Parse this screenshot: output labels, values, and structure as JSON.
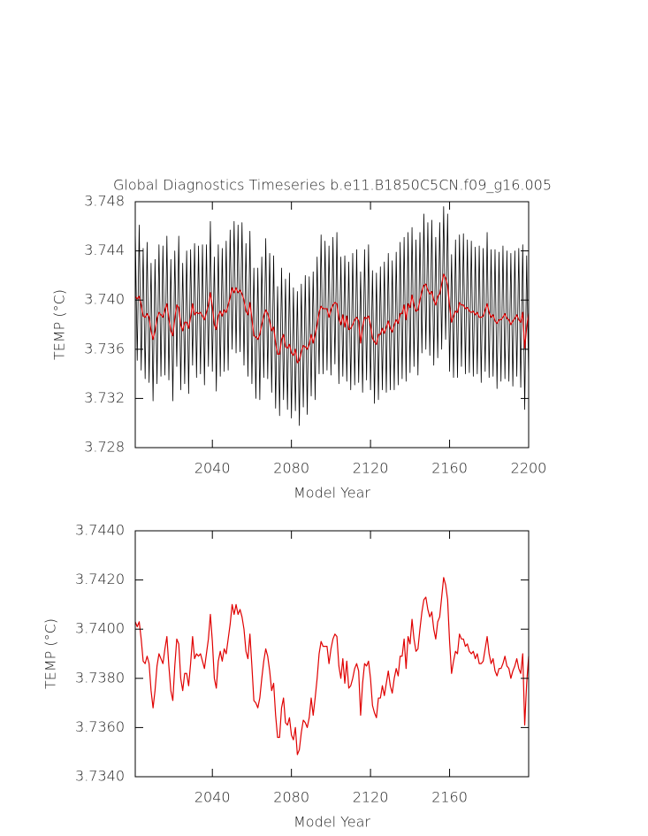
{
  "chart_data": [
    {
      "type": "line",
      "title": "Global Diagnostics Timeseries b.e11.B1850C5CN.f09_g16.005",
      "x_label": "Model Year",
      "y_label": "TEMP (°C)",
      "xlim": [
        2001,
        2200
      ],
      "xticks": [
        2040,
        2080,
        2120,
        2160,
        2200
      ],
      "ylim": [
        3.728,
        3.748
      ],
      "yticks": [
        3.728,
        3.732,
        3.736,
        {
          "value": 3.74,
          "label": "3.740"
        },
        3.744,
        3.748
      ],
      "x": [
        2001,
        2002,
        2003,
        2004,
        2005,
        2006,
        2007,
        2008,
        2009,
        2010,
        2011,
        2012,
        2013,
        2014,
        2015,
        2016,
        2017,
        2018,
        2019,
        2020,
        2021,
        2022,
        2023,
        2024,
        2025,
        2026,
        2027,
        2028,
        2029,
        2030,
        2031,
        2032,
        2033,
        2034,
        2035,
        2036,
        2037,
        2038,
        2039,
        2040,
        2041,
        2042,
        2043,
        2044,
        2045,
        2046,
        2047,
        2048,
        2049,
        2050,
        2051,
        2052,
        2053,
        2054,
        2055,
        2056,
        2057,
        2058,
        2059,
        2060,
        2061,
        2062,
        2063,
        2064,
        2065,
        2066,
        2067,
        2068,
        2069,
        2070,
        2071,
        2072,
        2073,
        2074,
        2075,
        2076,
        2077,
        2078,
        2079,
        2080,
        2081,
        2082,
        2083,
        2084,
        2085,
        2086,
        2087,
        2088,
        2089,
        2090,
        2091,
        2092,
        2093,
        2094,
        2095,
        2096,
        2097,
        2098,
        2099,
        2100,
        2101,
        2102,
        2103,
        2104,
        2105,
        2106,
        2107,
        2108,
        2109,
        2110,
        2111,
        2112,
        2113,
        2114,
        2115,
        2116,
        2117,
        2118,
        2119,
        2120,
        2121,
        2122,
        2123,
        2124,
        2125,
        2126,
        2127,
        2128,
        2129,
        2130,
        2131,
        2132,
        2133,
        2134,
        2135,
        2136,
        2137,
        2138,
        2139,
        2140,
        2141,
        2142,
        2143,
        2144,
        2145,
        2146,
        2147,
        2148,
        2149,
        2150,
        2151,
        2152,
        2153,
        2154,
        2155,
        2156,
        2157,
        2158,
        2159,
        2160,
        2161,
        2162,
        2163,
        2164,
        2165,
        2166,
        2167,
        2168,
        2169,
        2170,
        2171,
        2172,
        2173,
        2174,
        2175,
        2176,
        2177,
        2178,
        2179,
        2180,
        2181,
        2182,
        2183,
        2184,
        2185,
        2186,
        2187,
        2188,
        2189,
        2190,
        2191,
        2192,
        2193,
        2194,
        2195,
        2196,
        2197,
        2198,
        2199,
        2200
      ],
      "series": [
        {
          "color": "#000000",
          "values": [
            3.7458,
            3.7351,
            3.7461,
            3.7343,
            3.7442,
            3.7336,
            3.7447,
            3.7333,
            3.743,
            3.7318,
            3.7433,
            3.7332,
            3.7445,
            3.7338,
            3.7444,
            3.7339,
            3.7452,
            3.7335,
            3.7433,
            3.7318,
            3.744,
            3.7346,
            3.7452,
            3.7327,
            3.743,
            3.7332,
            3.744,
            3.7324,
            3.7441,
            3.7347,
            3.7446,
            3.7337,
            3.7444,
            3.734,
            3.7445,
            3.7331,
            3.7445,
            3.7346,
            3.7464,
            3.7342,
            3.7435,
            3.7326,
            3.7445,
            3.7338,
            3.7442,
            3.7342,
            3.7448,
            3.7343,
            3.7457,
            3.736,
            3.7464,
            3.7357,
            3.7461,
            3.7358,
            3.7463,
            3.7347,
            3.7446,
            3.7338,
            3.7456,
            3.7332,
            3.7426,
            3.732,
            3.7426,
            3.7319,
            3.7435,
            3.7337,
            3.745,
            3.7336,
            3.7438,
            3.7325,
            3.7436,
            3.7312,
            3.7411,
            3.7306,
            3.7426,
            3.7319,
            3.7417,
            3.7311,
            3.7422,
            3.7304,
            3.741,
            3.731,
            3.7407,
            3.7298,
            3.7413,
            3.7313,
            3.742,
            3.7307,
            3.7419,
            3.7322,
            3.7423,
            3.7319,
            3.7435,
            3.734,
            3.7453,
            3.734,
            3.7448,
            3.7343,
            3.7444,
            3.7339,
            3.7451,
            3.7348,
            3.7455,
            3.7332,
            3.7435,
            3.7338,
            3.7436,
            3.7334,
            3.7431,
            3.7327,
            3.7438,
            3.7331,
            3.7441,
            3.7333,
            3.7423,
            3.7325,
            3.7441,
            3.7335,
            3.7445,
            3.7327,
            3.7424,
            3.7316,
            3.7422,
            3.7319,
            3.7427,
            3.7327,
            3.7431,
            3.7325,
            3.7438,
            3.7327,
            3.7432,
            3.7327,
            3.7439,
            3.7331,
            3.7447,
            3.7336,
            3.7451,
            3.7334,
            3.7455,
            3.7341,
            3.7459,
            3.7346,
            3.7449,
            3.7339,
            3.7455,
            3.7357,
            3.747,
            3.736,
            3.7463,
            3.7355,
            3.7465,
            3.7347,
            3.7451,
            3.7353,
            3.7463,
            3.736,
            3.7476,
            3.7368,
            3.747,
            3.7342,
            3.7437,
            3.7337,
            3.7449,
            3.7337,
            3.7453,
            3.7346,
            3.7454,
            3.734,
            3.7449,
            3.7341,
            3.7448,
            3.7338,
            3.7443,
            3.734,
            3.7444,
            3.7333,
            3.7442,
            3.7342,
            3.7455,
            3.7337,
            3.7441,
            3.7338,
            3.7441,
            3.7328,
            3.7439,
            3.7334,
            3.7444,
            3.7336,
            3.744,
            3.7334,
            3.7438,
            3.733,
            3.744,
            3.7338,
            3.7442,
            3.7329,
            3.7445,
            3.7311,
            3.7436,
            3.7336
          ]
        },
        {
          "color": "#e00000",
          "values": [
            3.7403,
            3.7401,
            3.7403,
            3.7396,
            3.7387,
            3.7386,
            3.7389,
            3.7386,
            3.7375,
            3.7368,
            3.7375,
            3.7385,
            3.739,
            3.7388,
            3.7386,
            3.7392,
            3.7397,
            3.7385,
            3.7375,
            3.7371,
            3.7385,
            3.7396,
            3.7394,
            3.738,
            3.7375,
            3.7382,
            3.7382,
            3.7377,
            3.7386,
            3.7397,
            3.7388,
            3.739,
            3.7389,
            3.739,
            3.7387,
            3.7384,
            3.739,
            3.7396,
            3.7406,
            3.7395,
            3.738,
            3.7376,
            3.7387,
            3.7391,
            3.7387,
            3.7392,
            3.739,
            3.7396,
            3.7402,
            3.741,
            3.7406,
            3.741,
            3.7406,
            3.7408,
            3.7405,
            3.74,
            3.7391,
            3.7388,
            3.7398,
            3.7385,
            3.7371,
            3.737,
            3.7368,
            3.7372,
            3.738,
            3.7387,
            3.7392,
            3.7389,
            3.7383,
            3.7375,
            3.7378,
            3.7365,
            3.7356,
            3.7356,
            3.7368,
            3.7372,
            3.7362,
            3.7361,
            3.7364,
            3.7357,
            3.7355,
            3.736,
            3.7349,
            3.7351,
            3.7358,
            3.7363,
            3.7362,
            3.736,
            3.7364,
            3.7372,
            3.7365,
            3.7372,
            3.738,
            3.739,
            3.7395,
            3.7393,
            3.7393,
            3.7393,
            3.7386,
            3.7392,
            3.7396,
            3.7398,
            3.7397,
            3.7385,
            3.738,
            3.7388,
            3.7378,
            3.7387,
            3.7376,
            3.7377,
            3.738,
            3.7384,
            3.7386,
            3.7383,
            3.7365,
            3.7378,
            3.7386,
            3.7385,
            3.7387,
            3.738,
            3.7369,
            3.7366,
            3.7364,
            3.7372,
            3.7372,
            3.7377,
            3.7373,
            3.7378,
            3.7383,
            3.7377,
            3.7374,
            3.738,
            3.7384,
            3.7381,
            3.7389,
            3.7389,
            3.7396,
            3.7384,
            3.7397,
            3.7394,
            3.7404,
            3.7396,
            3.7391,
            3.7392,
            3.74,
            3.7407,
            3.7412,
            3.7413,
            3.7408,
            3.7405,
            3.7407,
            3.74,
            3.7396,
            3.7403,
            3.7405,
            3.7413,
            3.7421,
            3.7418,
            3.7412,
            3.7395,
            3.7382,
            3.7387,
            3.7391,
            3.739,
            3.7398,
            3.7396,
            3.7396,
            3.7393,
            3.7394,
            3.7391,
            3.739,
            3.7391,
            3.7388,
            3.739,
            3.7386,
            3.7386,
            3.7387,
            3.7392,
            3.7397,
            3.739,
            3.7386,
            3.7388,
            3.7383,
            3.7381,
            3.7384,
            3.7384,
            3.7386,
            3.7389,
            3.7385,
            3.7384,
            3.738,
            3.7383,
            3.7385,
            3.7388,
            3.7384,
            3.7382,
            3.739,
            3.7361,
            3.7378,
            3.7389
          ]
        }
      ]
    },
    {
      "type": "line",
      "x_label": "Model Year",
      "y_label": "TEMP (°C)",
      "xlim": [
        2001,
        2200
      ],
      "xticks": [
        2040,
        2080,
        2120,
        2160
      ],
      "ylim": [
        3.734,
        3.744
      ],
      "yticks": [
        {
          "value": 3.734,
          "label": "3.7340"
        },
        {
          "value": 3.736,
          "label": "3.7360"
        },
        {
          "value": 3.738,
          "label": "3.7380"
        },
        {
          "value": 3.74,
          "label": "3.7400"
        },
        {
          "value": 3.742,
          "label": "3.7420"
        },
        {
          "value": 3.744,
          "label": "3.7440"
        }
      ],
      "x": [
        2001,
        2002,
        2003,
        2004,
        2005,
        2006,
        2007,
        2008,
        2009,
        2010,
        2011,
        2012,
        2013,
        2014,
        2015,
        2016,
        2017,
        2018,
        2019,
        2020,
        2021,
        2022,
        2023,
        2024,
        2025,
        2026,
        2027,
        2028,
        2029,
        2030,
        2031,
        2032,
        2033,
        2034,
        2035,
        2036,
        2037,
        2038,
        2039,
        2040,
        2041,
        2042,
        2043,
        2044,
        2045,
        2046,
        2047,
        2048,
        2049,
        2050,
        2051,
        2052,
        2053,
        2054,
        2055,
        2056,
        2057,
        2058,
        2059,
        2060,
        2061,
        2062,
        2063,
        2064,
        2065,
        2066,
        2067,
        2068,
        2069,
        2070,
        2071,
        2072,
        2073,
        2074,
        2075,
        2076,
        2077,
        2078,
        2079,
        2080,
        2081,
        2082,
        2083,
        2084,
        2085,
        2086,
        2087,
        2088,
        2089,
        2090,
        2091,
        2092,
        2093,
        2094,
        2095,
        2096,
        2097,
        2098,
        2099,
        2100,
        2101,
        2102,
        2103,
        2104,
        2105,
        2106,
        2107,
        2108,
        2109,
        2110,
        2111,
        2112,
        2113,
        2114,
        2115,
        2116,
        2117,
        2118,
        2119,
        2120,
        2121,
        2122,
        2123,
        2124,
        2125,
        2126,
        2127,
        2128,
        2129,
        2130,
        2131,
        2132,
        2133,
        2134,
        2135,
        2136,
        2137,
        2138,
        2139,
        2140,
        2141,
        2142,
        2143,
        2144,
        2145,
        2146,
        2147,
        2148,
        2149,
        2150,
        2151,
        2152,
        2153,
        2154,
        2155,
        2156,
        2157,
        2158,
        2159,
        2160,
        2161,
        2162,
        2163,
        2164,
        2165,
        2166,
        2167,
        2168,
        2169,
        2170,
        2171,
        2172,
        2173,
        2174,
        2175,
        2176,
        2177,
        2178,
        2179,
        2180,
        2181,
        2182,
        2183,
        2184,
        2185,
        2186,
        2187,
        2188,
        2189,
        2190,
        2191,
        2192,
        2193,
        2194,
        2195,
        2196,
        2197,
        2198,
        2199,
        2200
      ],
      "series": [
        {
          "color": "#e00000",
          "values": [
            3.7403,
            3.7401,
            3.7403,
            3.7396,
            3.7387,
            3.7386,
            3.7389,
            3.7386,
            3.7375,
            3.7368,
            3.7375,
            3.7385,
            3.739,
            3.7388,
            3.7386,
            3.7392,
            3.7397,
            3.7385,
            3.7375,
            3.7371,
            3.7385,
            3.7396,
            3.7394,
            3.738,
            3.7375,
            3.7382,
            3.7382,
            3.7377,
            3.7386,
            3.7397,
            3.7388,
            3.739,
            3.7389,
            3.739,
            3.7387,
            3.7384,
            3.739,
            3.7396,
            3.7406,
            3.7395,
            3.738,
            3.7376,
            3.7387,
            3.7391,
            3.7387,
            3.7392,
            3.739,
            3.7396,
            3.7402,
            3.741,
            3.7406,
            3.741,
            3.7406,
            3.7408,
            3.7405,
            3.74,
            3.7391,
            3.7388,
            3.7398,
            3.7385,
            3.7371,
            3.737,
            3.7368,
            3.7372,
            3.738,
            3.7387,
            3.7392,
            3.7389,
            3.7383,
            3.7375,
            3.7378,
            3.7365,
            3.7356,
            3.7356,
            3.7368,
            3.7372,
            3.7362,
            3.7361,
            3.7364,
            3.7357,
            3.7355,
            3.736,
            3.7349,
            3.7351,
            3.7358,
            3.7363,
            3.7362,
            3.736,
            3.7364,
            3.7372,
            3.7365,
            3.7372,
            3.738,
            3.739,
            3.7395,
            3.7393,
            3.7393,
            3.7393,
            3.7386,
            3.7392,
            3.7396,
            3.7398,
            3.7397,
            3.7385,
            3.738,
            3.7388,
            3.7378,
            3.7387,
            3.7376,
            3.7377,
            3.738,
            3.7384,
            3.7386,
            3.7383,
            3.7365,
            3.7378,
            3.7386,
            3.7385,
            3.7387,
            3.738,
            3.7369,
            3.7366,
            3.7364,
            3.7372,
            3.7372,
            3.7377,
            3.7373,
            3.7378,
            3.7383,
            3.7377,
            3.7374,
            3.738,
            3.7384,
            3.7381,
            3.7389,
            3.7389,
            3.7396,
            3.7384,
            3.7397,
            3.7394,
            3.7404,
            3.7396,
            3.7391,
            3.7392,
            3.74,
            3.7407,
            3.7412,
            3.7413,
            3.7408,
            3.7405,
            3.7407,
            3.74,
            3.7396,
            3.7403,
            3.7405,
            3.7413,
            3.7421,
            3.7418,
            3.7412,
            3.7395,
            3.7382,
            3.7387,
            3.7391,
            3.739,
            3.7398,
            3.7396,
            3.7396,
            3.7393,
            3.7394,
            3.7391,
            3.739,
            3.7391,
            3.7388,
            3.739,
            3.7386,
            3.7386,
            3.7387,
            3.7392,
            3.7397,
            3.739,
            3.7386,
            3.7388,
            3.7383,
            3.7381,
            3.7384,
            3.7384,
            3.7386,
            3.7389,
            3.7385,
            3.7384,
            3.738,
            3.7383,
            3.7385,
            3.7388,
            3.7384,
            3.7382,
            3.739,
            3.7361,
            3.7378,
            3.7389
          ]
        }
      ]
    }
  ]
}
